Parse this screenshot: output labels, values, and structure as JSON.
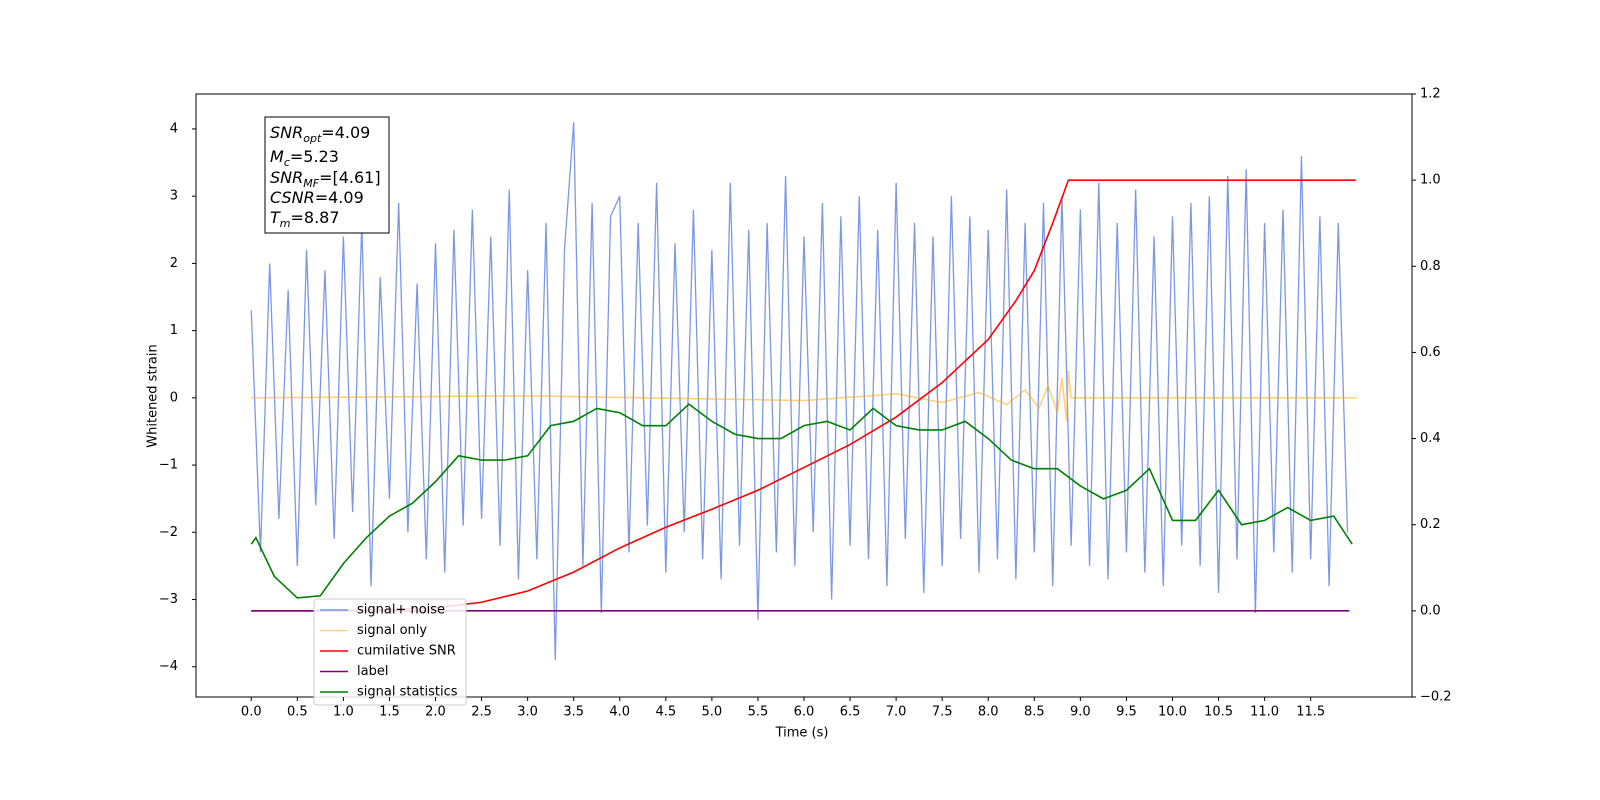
{
  "chart_data": {
    "type": "line",
    "xlabel": "Time (s)",
    "ylabel": "Whitened strain",
    "xlim": [
      -0.6,
      12.6
    ],
    "ylim": [
      -4.45,
      4.52
    ],
    "y2lim": [
      -0.2,
      1.2
    ],
    "xticks": [
      {
        "value": 0,
        "label": "0.0"
      },
      0.5,
      {
        "value": 1,
        "label": "1.0"
      },
      1.5,
      {
        "value": 2,
        "label": "2.0"
      },
      2.5,
      {
        "value": 3,
        "label": "3.0"
      },
      3.5,
      {
        "value": 4,
        "label": "4.0"
      },
      4.5,
      {
        "value": 5,
        "label": "5.0"
      },
      5.5,
      {
        "value": 6,
        "label": "6.0"
      },
      6.5,
      {
        "value": 7,
        "label": "7.0"
      },
      7.5,
      {
        "value": 8,
        "label": "8.0"
      },
      8.5,
      {
        "value": 9,
        "label": "9.0"
      },
      9.5,
      {
        "value": 10,
        "label": "10.0"
      },
      10.5,
      {
        "value": 11,
        "label": "11.0"
      },
      11.5
    ],
    "yticks": [
      {
        "value": -4,
        "label": "−4"
      },
      {
        "value": -3,
        "label": "−3"
      },
      {
        "value": -2,
        "label": "−2"
      },
      {
        "value": -1,
        "label": "−1"
      },
      0,
      1,
      2,
      3,
      4
    ],
    "y2ticks": [
      {
        "value": -0.2,
        "label": "−0.2"
      },
      {
        "value": 0,
        "label": "0.0"
      },
      0.2,
      0.4,
      0.6,
      0.8,
      {
        "value": 1,
        "label": "1.0"
      },
      1.2
    ],
    "legend_loc": "lower left",
    "annotation": [
      {
        "base": "SNR",
        "sub": "opt",
        "text": "=4.09"
      },
      {
        "base": "M",
        "sub": "c",
        "text": "=5.23"
      },
      {
        "base": "SNR",
        "sub": "MF",
        "text": "=[4.61]"
      },
      {
        "base": "CSNR",
        "text": "=4.09"
      },
      {
        "base": "T",
        "sub": "m",
        "text": "=8.87"
      }
    ],
    "series": [
      {
        "name": "signal+ noise",
        "color": "#7591e6",
        "x": [
          0.0,
          0.1,
          0.2,
          0.3,
          0.4,
          0.5,
          0.6,
          0.7,
          0.8,
          0.9,
          1.0,
          1.1,
          1.2,
          1.3,
          1.4,
          1.5,
          1.6,
          1.7,
          1.8,
          1.9,
          2.0,
          2.1,
          2.2,
          2.3,
          2.4,
          2.5,
          2.6,
          2.7,
          2.8,
          2.9,
          3.0,
          3.1,
          3.2,
          3.3,
          3.4,
          3.5,
          3.6,
          3.7,
          3.8,
          3.9,
          4.0,
          4.1,
          4.2,
          4.3,
          4.4,
          4.5,
          4.6,
          4.7,
          4.8,
          4.9,
          5.0,
          5.1,
          5.2,
          5.3,
          5.4,
          5.5,
          5.6,
          5.7,
          5.8,
          5.9,
          6.0,
          6.1,
          6.2,
          6.3,
          6.4,
          6.5,
          6.6,
          6.7,
          6.8,
          6.9,
          7.0,
          7.1,
          7.2,
          7.3,
          7.4,
          7.5,
          7.6,
          7.7,
          7.8,
          7.9,
          8.0,
          8.1,
          8.2,
          8.3,
          8.4,
          8.5,
          8.6,
          8.7,
          8.8,
          8.9,
          9.0,
          9.1,
          9.2,
          9.3,
          9.4,
          9.5,
          9.6,
          9.7,
          9.8,
          9.9,
          10.0,
          10.1,
          10.2,
          10.3,
          10.4,
          10.5,
          10.6,
          10.7,
          10.8,
          10.9,
          11.0,
          11.1,
          11.2,
          11.3,
          11.4,
          11.5,
          11.6,
          11.7,
          11.8,
          11.9
        ],
        "values": [
          1.3,
          -2.3,
          2.0,
          -1.8,
          1.6,
          -2.5,
          2.2,
          -1.6,
          1.9,
          -2.1,
          2.4,
          -1.7,
          2.6,
          -2.8,
          1.8,
          -1.5,
          2.9,
          -2.0,
          1.7,
          -2.4,
          2.3,
          -2.6,
          2.5,
          -1.9,
          2.8,
          -1.8,
          2.4,
          -2.2,
          3.1,
          -2.7,
          1.9,
          -2.4,
          2.6,
          -3.9,
          2.2,
          4.1,
          -2.5,
          2.9,
          -3.2,
          2.7,
          3.0,
          -2.3,
          2.6,
          -1.9,
          3.2,
          -2.6,
          2.3,
          -2.0,
          2.8,
          -2.4,
          2.2,
          -2.7,
          3.2,
          -2.2,
          2.5,
          -3.3,
          2.6,
          -2.3,
          3.3,
          -2.5,
          2.4,
          -2.0,
          2.9,
          -3.0,
          2.7,
          -2.2,
          3.0,
          -2.4,
          2.5,
          -2.8,
          3.2,
          -2.1,
          2.6,
          -2.9,
          2.4,
          -2.5,
          3.0,
          -2.1,
          2.7,
          -2.6,
          2.5,
          -2.4,
          3.1,
          -2.7,
          2.6,
          -2.3,
          2.9,
          -2.8,
          3.0,
          -2.2,
          2.8,
          -2.5,
          3.2,
          -2.7,
          2.6,
          -2.3,
          3.1,
          -2.6,
          2.4,
          -2.8,
          2.7,
          -2.2,
          2.9,
          -2.5,
          3.0,
          -2.9,
          3.3,
          -2.4,
          3.4,
          -3.2,
          2.6,
          -2.3,
          2.8,
          -2.6,
          3.6,
          -2.4,
          2.7,
          -2.8,
          2.6,
          -2.0
        ]
      },
      {
        "name": "signal only",
        "color": "#ffa500",
        "x": [
          0,
          3,
          6,
          7,
          7.5,
          7.9,
          8.2,
          8.4,
          8.55,
          8.65,
          8.75,
          8.8,
          8.85,
          8.87,
          8.9,
          12
        ],
        "values": [
          0,
          0.03,
          -0.04,
          0.06,
          -0.07,
          0.08,
          -0.1,
          0.12,
          -0.15,
          0.18,
          -0.22,
          0.3,
          -0.35,
          0.4,
          0,
          0
        ]
      },
      {
        "name": "cumilative SNR",
        "color": "#ff0000",
        "axis": "y2",
        "x": [
          0,
          1,
          2,
          2.5,
          3,
          3.5,
          4,
          4.5,
          5,
          5.5,
          6,
          6.5,
          7,
          7.5,
          8,
          8.3,
          8.5,
          8.7,
          8.87,
          11.99
        ],
        "values": [
          0,
          0,
          0.007,
          0.02,
          0.046,
          0.09,
          0.146,
          0.194,
          0.236,
          0.28,
          0.333,
          0.386,
          0.45,
          0.53,
          0.63,
          0.72,
          0.79,
          0.9,
          1.0,
          1.0
        ]
      },
      {
        "name": "label",
        "color": "#800080",
        "axis": "y2",
        "x": [
          0,
          11.92
        ],
        "values": [
          0,
          0
        ]
      },
      {
        "name": "signal statistics",
        "color": "#008000",
        "axis": "y2",
        "x": [
          0,
          0.05,
          0.25,
          0.5,
          0.75,
          1.0,
          1.25,
          1.5,
          1.75,
          2.0,
          2.25,
          2.5,
          2.75,
          3.0,
          3.25,
          3.5,
          3.75,
          4.0,
          4.25,
          4.5,
          4.75,
          5.0,
          5.25,
          5.5,
          5.75,
          6.0,
          6.25,
          6.5,
          6.75,
          7.0,
          7.25,
          7.5,
          7.75,
          8.0,
          8.25,
          8.5,
          8.75,
          9.0,
          9.25,
          9.5,
          9.75,
          10.0,
          10.25,
          10.5,
          10.75,
          11.0,
          11.25,
          11.5,
          11.75,
          11.95
        ],
        "values": [
          0.155,
          0.17,
          0.08,
          0.03,
          0.035,
          0.11,
          0.17,
          0.22,
          0.25,
          0.3,
          0.36,
          0.35,
          0.35,
          0.36,
          0.43,
          0.44,
          0.47,
          0.46,
          0.43,
          0.43,
          0.48,
          0.44,
          0.41,
          0.4,
          0.4,
          0.43,
          0.44,
          0.42,
          0.47,
          0.43,
          0.42,
          0.42,
          0.44,
          0.4,
          0.35,
          0.33,
          0.33,
          0.29,
          0.26,
          0.28,
          0.33,
          0.21,
          0.21,
          0.28,
          0.2,
          0.21,
          0.24,
          0.21,
          0.22,
          0.155
        ]
      }
    ]
  }
}
